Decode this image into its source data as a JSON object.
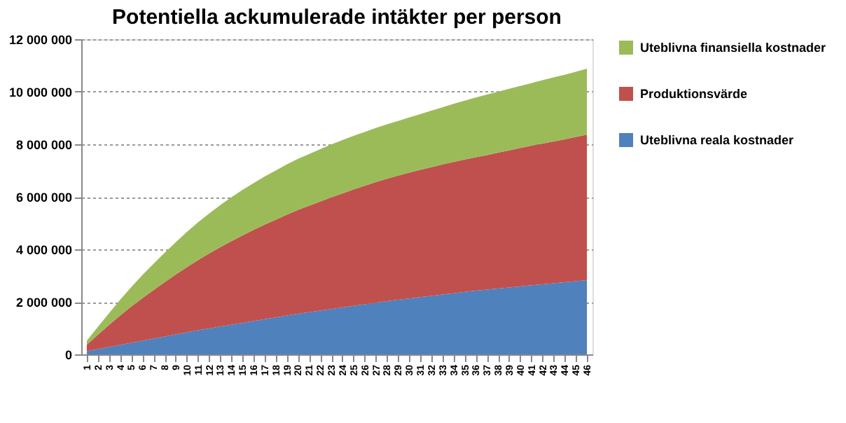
{
  "chart_data": {
    "type": "area",
    "stacked": true,
    "title": "Potentiella ackumulerade intäkter per person",
    "categories": [
      "1",
      "2",
      "3",
      "4",
      "5",
      "6",
      "7",
      "8",
      "9",
      "10",
      "11",
      "12",
      "13",
      "14",
      "15",
      "16",
      "17",
      "18",
      "19",
      "20",
      "21",
      "22",
      "23",
      "24",
      "25",
      "26",
      "27",
      "28",
      "29",
      "30",
      "31",
      "32",
      "33",
      "34",
      "35",
      "36",
      "37",
      "38",
      "39",
      "40",
      "41",
      "42",
      "43",
      "44",
      "45",
      "46"
    ],
    "series": [
      {
        "name": "Uteblivna reala kostnader",
        "color": "#4f81bd",
        "values": [
          120000,
          200000,
          280000,
          360000,
          440000,
          520000,
          600000,
          680000,
          760000,
          840000,
          920000,
          990000,
          1060000,
          1130000,
          1200000,
          1270000,
          1340000,
          1410000,
          1480000,
          1550000,
          1610000,
          1670000,
          1730000,
          1790000,
          1850000,
          1910000,
          1970000,
          2030000,
          2080000,
          2130000,
          2180000,
          2230000,
          2280000,
          2330000,
          2380000,
          2430000,
          2470000,
          2510000,
          2550000,
          2590000,
          2630000,
          2670000,
          2710000,
          2750000,
          2790000,
          2830000
        ]
      },
      {
        "name": "Produktionsvärde",
        "color": "#c0504d",
        "values": [
          250000,
          550000,
          840000,
          1120000,
          1380000,
          1620000,
          1850000,
          2070000,
          2280000,
          2480000,
          2670000,
          2850000,
          3020000,
          3180000,
          3330000,
          3470000,
          3600000,
          3720000,
          3840000,
          3950000,
          4050000,
          4150000,
          4250000,
          4340000,
          4430000,
          4510000,
          4590000,
          4660000,
          4730000,
          4790000,
          4850000,
          4900000,
          4950000,
          5000000,
          5040000,
          5080000,
          5120000,
          5170000,
          5220000,
          5270000,
          5320000,
          5360000,
          5400000,
          5440000,
          5490000,
          5540000
        ]
      },
      {
        "name": "Uteblivna finansiella kostnader",
        "color": "#9bbb59",
        "values": [
          150000,
          300000,
          450000,
          600000,
          740000,
          880000,
          1000000,
          1120000,
          1230000,
          1340000,
          1440000,
          1520000,
          1600000,
          1670000,
          1730000,
          1780000,
          1830000,
          1870000,
          1910000,
          1950000,
          1970000,
          1990000,
          2010000,
          2030000,
          2040000,
          2050000,
          2060000,
          2070000,
          2080000,
          2100000,
          2120000,
          2150000,
          2180000,
          2210000,
          2240000,
          2270000,
          2300000,
          2320000,
          2340000,
          2360000,
          2380000,
          2410000,
          2440000,
          2460000,
          2480000,
          2510000
        ]
      }
    ],
    "ylim": [
      0,
      12000000
    ],
    "yticks": [
      0,
      {
        "value": 2000000,
        "label": "2 000 000"
      },
      {
        "value": 4000000,
        "label": "4 000 000"
      },
      {
        "value": 6000000,
        "label": "6 000 000"
      },
      {
        "value": 8000000,
        "label": "8 000 000"
      },
      {
        "value": 10000000,
        "label": "10 000 000"
      },
      {
        "value": 12000000,
        "label": "12 000 000"
      }
    ],
    "grid": "y",
    "legend": "right"
  }
}
